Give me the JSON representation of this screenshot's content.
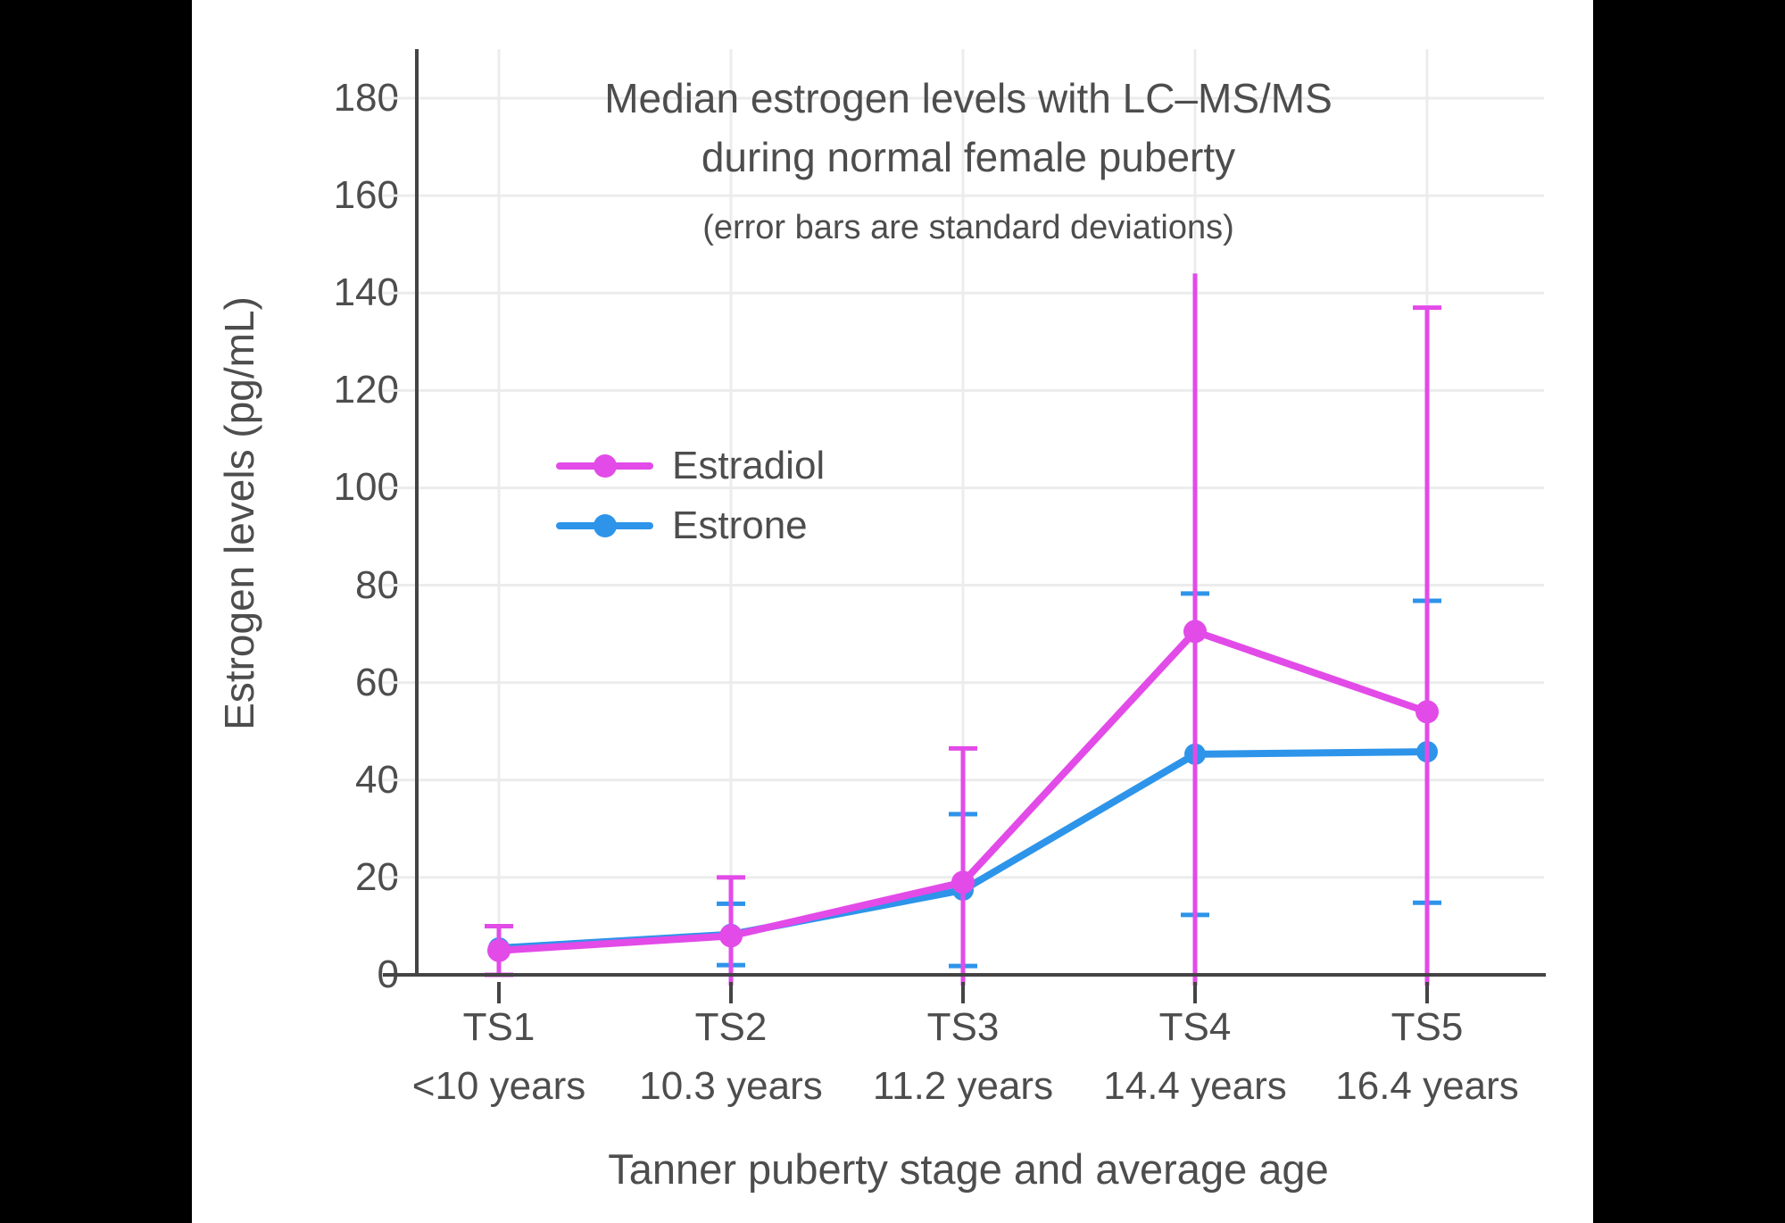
{
  "figure": {
    "title_line1": "Median estrogen levels with LC–MS/MS",
    "title_line2": "during normal female puberty"
  },
  "chart_data": {
    "type": "line",
    "title": "Median estrogen levels with LC–MS/MS during normal female puberty",
    "subtitle": "(error bars are standard deviations)",
    "xlabel": "Tanner puberty stage and average age",
    "ylabel": "Estrogen levels (pg/mL)",
    "units": "pg/mL",
    "categories": [
      "TS1",
      "TS2",
      "TS3",
      "TS4",
      "TS5"
    ],
    "category_ages": [
      "<10 years",
      "10.3 years",
      "11.2 years",
      "14.4 years",
      "16.4 years"
    ],
    "yticks": [
      0,
      20,
      40,
      60,
      80,
      100,
      120,
      140,
      160,
      180
    ],
    "ylim": [
      0,
      190
    ],
    "grid": true,
    "legend_position": "inside upper-left",
    "error_bars": "standard deviations",
    "series": [
      {
        "name": "Estradiol",
        "color": "#E24BE8",
        "median_pg_ml": [
          5,
          8,
          19,
          70.5,
          54
        ],
        "sd": [
          5,
          12,
          27.5,
          73.5,
          83
        ],
        "top_caps": [
          true,
          true,
          true,
          false,
          true
        ]
      },
      {
        "name": "Estrone",
        "color": "#2D94EA",
        "median_pg_ml": [
          5.5,
          8.3,
          17.4,
          45.3,
          45.8
        ],
        "sd": [
          0,
          6.3,
          15.6,
          33,
          31
        ],
        "top_caps": [
          true,
          true,
          true,
          true,
          true
        ]
      }
    ]
  },
  "colors": {
    "page_bg": "#000000",
    "canvas_bg": "#ffffff",
    "axis": "#444444",
    "grid": "#ECECEC",
    "text": "#4d4d4d"
  }
}
